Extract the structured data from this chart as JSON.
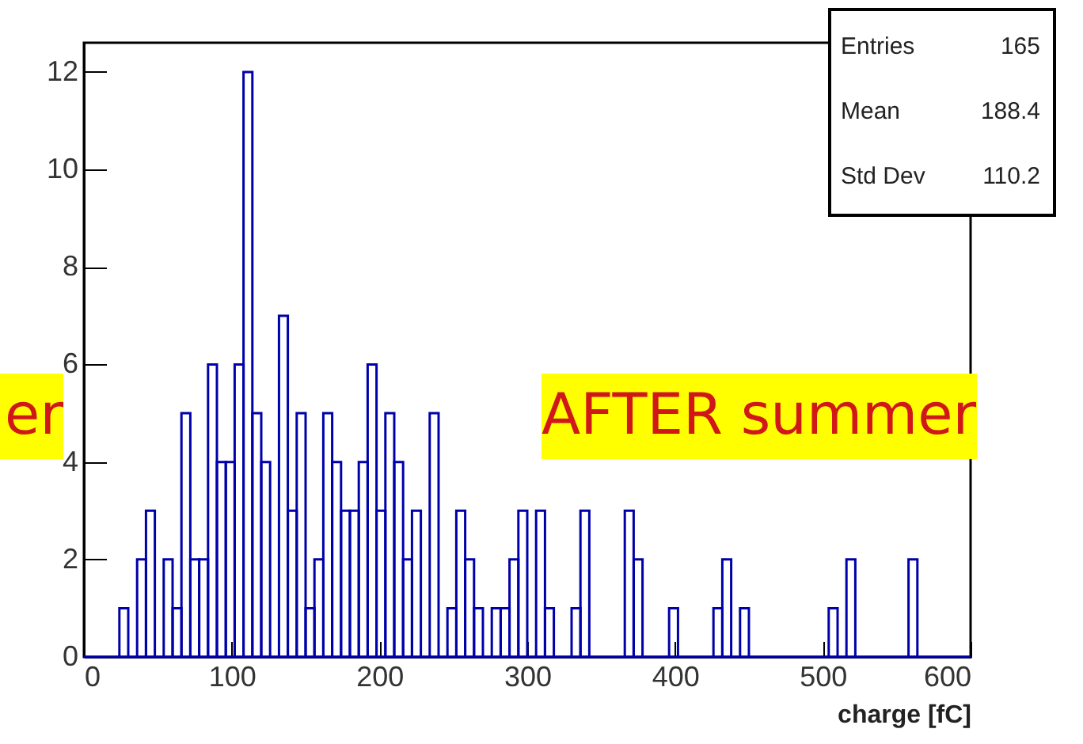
{
  "chart_data": {
    "type": "histogram",
    "xlabel": "charge [fC]",
    "color": "#0000aa",
    "bins": [
      0,
      6,
      12,
      18,
      24,
      30,
      36,
      42,
      48,
      54,
      60,
      66,
      72,
      78,
      84,
      90,
      96,
      102,
      108,
      114,
      120,
      126,
      132,
      138,
      144,
      150,
      156,
      162,
      168,
      174,
      180,
      186,
      192,
      198,
      204,
      210,
      216,
      222,
      228,
      234,
      240,
      246,
      252,
      258,
      264,
      270,
      276,
      282,
      288,
      294,
      300,
      306,
      312,
      318,
      324,
      330,
      336,
      342,
      348,
      354,
      360,
      366,
      372,
      378,
      384,
      390,
      396,
      402,
      408,
      414,
      420,
      426,
      432,
      438,
      444,
      450,
      456,
      462,
      468,
      474,
      480,
      486,
      492,
      498,
      504,
      510,
      516,
      522,
      528,
      534,
      540,
      546,
      552,
      558,
      564,
      570,
      576,
      582,
      588,
      594,
      600
    ],
    "values": [
      0,
      0,
      0,
      0,
      1,
      0,
      2,
      3,
      0,
      2,
      1,
      5,
      2,
      2,
      6,
      4,
      4,
      6,
      12,
      5,
      4,
      0,
      7,
      3,
      5,
      1,
      2,
      5,
      4,
      3,
      3,
      4,
      6,
      3,
      5,
      4,
      2,
      3,
      0,
      5,
      0,
      1,
      3,
      2,
      1,
      0,
      1,
      1,
      2,
      3,
      0,
      3,
      1,
      0,
      0,
      1,
      3,
      0,
      0,
      0,
      0,
      3,
      2,
      0,
      0,
      0,
      1,
      0,
      0,
      0,
      0,
      1,
      2,
      0,
      1,
      0,
      0,
      0,
      0,
      0,
      0,
      0,
      0,
      0,
      1,
      0,
      2,
      0,
      0,
      0,
      0,
      0,
      0,
      2,
      0,
      0,
      0,
      0,
      0,
      0
    ],
    "xlim": [
      0,
      600
    ],
    "xticks": [
      0,
      100,
      200,
      300,
      400,
      500,
      600
    ],
    "ylim": [
      0,
      12.6
    ],
    "yticks": [
      0,
      2,
      4,
      6,
      8,
      10,
      12
    ],
    "grid": false,
    "annotations": [
      "Entries 165",
      "Mean 188.4",
      "Std Dev 110.2",
      "AFTER summer",
      "er"
    ]
  }
}
